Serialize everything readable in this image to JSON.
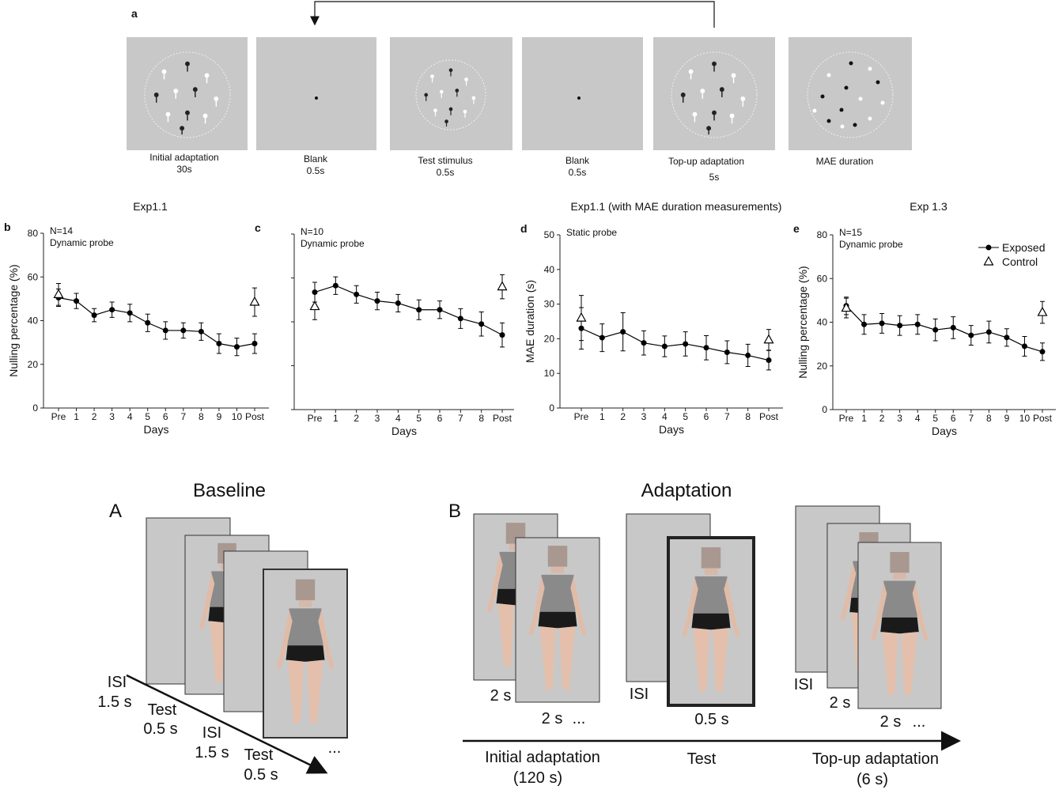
{
  "panel_a": {
    "letter": "a",
    "frames": [
      {
        "label": "Initial adaptation",
        "duration": "30s"
      },
      {
        "label": "Blank",
        "duration": "0.5s"
      },
      {
        "label": "Test stimulus",
        "duration": "0.5s"
      },
      {
        "label": "Blank",
        "duration": "0.5s"
      },
      {
        "label": "Top-up adaptation",
        "duration": "5s"
      },
      {
        "label": "MAE duration"
      }
    ]
  },
  "shared_title": "Exp1.1 (with MAE duration measurements)",
  "chart_data": [
    {
      "type": "line",
      "letter": "b",
      "title": "Exp1.1",
      "annotations": [
        "N=14",
        "Dynamic probe"
      ],
      "ylabel": "Nulling percentage (%)",
      "xlabel": "Days",
      "categories": [
        "Pre",
        "1",
        "2",
        "3",
        "4",
        "5",
        "6",
        "7",
        "8",
        "9",
        "10",
        "Post"
      ],
      "series": [
        {
          "marker": "circle",
          "color": "#000000",
          "values": [
            50.5,
            49,
            42.5,
            45,
            43.5,
            39,
            35.5,
            35.5,
            35,
            29.5,
            28,
            29.5
          ],
          "errors": [
            4,
            3.5,
            3,
            3.5,
            4,
            4,
            4,
            3.5,
            4,
            4.5,
            4,
            4.5
          ]
        },
        {
          "marker": "triangle",
          "color": "#000000",
          "values": [
            52,
            null,
            null,
            null,
            null,
            null,
            null,
            null,
            null,
            null,
            null,
            48.5
          ],
          "errors": [
            5,
            null,
            null,
            null,
            null,
            null,
            null,
            null,
            null,
            null,
            null,
            6.5
          ]
        }
      ],
      "ylim": [
        0,
        80
      ],
      "yticks": [
        0,
        20,
        40,
        60,
        80
      ],
      "show_ytick_labels": true
    },
    {
      "type": "line",
      "letter": "c",
      "annotations": [
        "N=10",
        "Dynamic probe"
      ],
      "xlabel": "Days",
      "categories": [
        "Pre",
        "1",
        "2",
        "3",
        "4",
        "5",
        "6",
        "7",
        "8",
        "Post"
      ],
      "series": [
        {
          "marker": "circle",
          "color": "#000000",
          "values": [
            53.5,
            56.5,
            52.5,
            49.5,
            48.5,
            45.5,
            45.5,
            41.5,
            39,
            34
          ],
          "errors": [
            4.5,
            4,
            4,
            4,
            4,
            4.5,
            4,
            4.5,
            5.5,
            5.5
          ]
        },
        {
          "marker": "triangle",
          "color": "#000000",
          "values": [
            47,
            null,
            null,
            null,
            null,
            null,
            null,
            null,
            null,
            56
          ],
          "errors": [
            6,
            null,
            null,
            null,
            null,
            null,
            null,
            null,
            null,
            5.5
          ]
        }
      ],
      "ylim": [
        0,
        80
      ],
      "yticks": [
        0,
        20,
        40,
        60,
        80
      ],
      "show_ytick_labels": false
    },
    {
      "type": "line",
      "letter": "d",
      "annotations": [
        "Static probe"
      ],
      "ylabel": "MAE duration (s)",
      "xlabel": "Days",
      "categories": [
        "Pre",
        "1",
        "2",
        "3",
        "4",
        "5",
        "6",
        "7",
        "8",
        "Post"
      ],
      "series": [
        {
          "marker": "circle",
          "color": "#000000",
          "values": [
            23,
            20.3,
            22,
            18.8,
            17.8,
            18.5,
            17.4,
            16.1,
            15.2,
            13.8
          ],
          "errors": [
            6,
            4,
            5.5,
            3.5,
            3,
            3.5,
            3.5,
            3.3,
            3.2,
            2.8
          ]
        },
        {
          "marker": "triangle",
          "color": "#000000",
          "values": [
            26,
            null,
            null,
            null,
            null,
            null,
            null,
            null,
            null,
            19.7
          ],
          "errors": [
            6.5,
            null,
            null,
            null,
            null,
            null,
            null,
            null,
            null,
            3
          ]
        }
      ],
      "ylim": [
        0,
        50
      ],
      "yticks": [
        0,
        10,
        20,
        30,
        40,
        50
      ],
      "show_ytick_labels": true
    },
    {
      "type": "line",
      "letter": "e",
      "title": "Exp 1.3",
      "annotations": [
        "N=15",
        "Dynamic probe"
      ],
      "ylabel": "Nulling percentage (%)",
      "xlabel": "Days",
      "categories": [
        "Pre",
        "1",
        "2",
        "3",
        "4",
        "5",
        "6",
        "7",
        "8",
        "9",
        "10",
        "Post"
      ],
      "series": [
        {
          "name": "Exposed",
          "marker": "circle",
          "color": "#000000",
          "values": [
            47.5,
            39,
            39.5,
            38.5,
            39,
            36.5,
            37.5,
            34,
            35.5,
            33,
            29,
            26.5
          ],
          "errors": [
            4,
            4.5,
            4.5,
            4.5,
            4.5,
            5,
            5,
            4.5,
            5,
            4,
            4.5,
            4
          ]
        },
        {
          "name": "Control",
          "marker": "triangle",
          "color": "#000000",
          "values": [
            46.5,
            null,
            null,
            null,
            null,
            null,
            null,
            null,
            null,
            null,
            null,
            44.5
          ],
          "errors": [
            4.5,
            null,
            null,
            null,
            null,
            null,
            null,
            null,
            null,
            null,
            null,
            5
          ]
        }
      ],
      "ylim": [
        0,
        80
      ],
      "yticks": [
        0,
        20,
        40,
        60,
        80
      ],
      "show_ytick_labels": true,
      "legend": "upper right"
    }
  ],
  "panel_A": {
    "letter": "A",
    "title": "Baseline",
    "labels": [
      "ISI",
      "1.5 s",
      "Test",
      "0.5 s",
      "ISI",
      "1.5 s",
      "Test",
      "0.5 s",
      "..."
    ]
  },
  "panel_B": {
    "letter": "B",
    "title": "Adaptation",
    "labels": [
      "2 s",
      "2 s",
      "...",
      "ISI",
      "0.5 s",
      "ISI",
      "2 s",
      "2 s",
      "..."
    ],
    "phases": [
      {
        "label": "Initial adaptation",
        "duration": "(120 s)"
      },
      {
        "label": "Test"
      },
      {
        "label": "Top-up adaptation",
        "duration": "(6 s)"
      }
    ]
  }
}
